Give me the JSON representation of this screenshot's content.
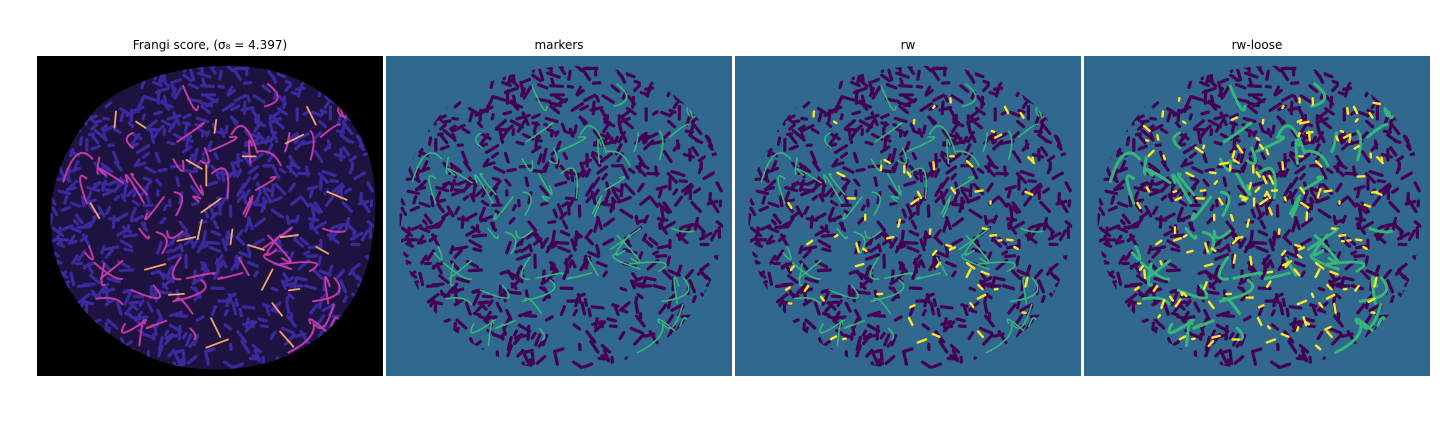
{
  "figure": {
    "panels": [
      {
        "title": "Frangi score, (σ₈ = 4.397)",
        "bg": "#000000",
        "blob": "#1e1240",
        "pattern": "#3a2a9e",
        "vessel": "#c13aa6",
        "highlight": "#f7a46a"
      },
      {
        "title": "markers",
        "bg": "#31688e",
        "blob": "#31688e",
        "pattern": "#440154",
        "vessel": "#35b779",
        "highlight": "#35b779"
      },
      {
        "title": "rw",
        "bg": "#31688e",
        "blob": "#31688e",
        "pattern": "#440154",
        "vessel": "#35b779",
        "highlight": "#fde725"
      },
      {
        "title": "rw-loose",
        "bg": "#31688e",
        "blob": "#31688e",
        "pattern": "#440154",
        "vessel": "#35b779",
        "highlight": "#fde725"
      }
    ]
  }
}
